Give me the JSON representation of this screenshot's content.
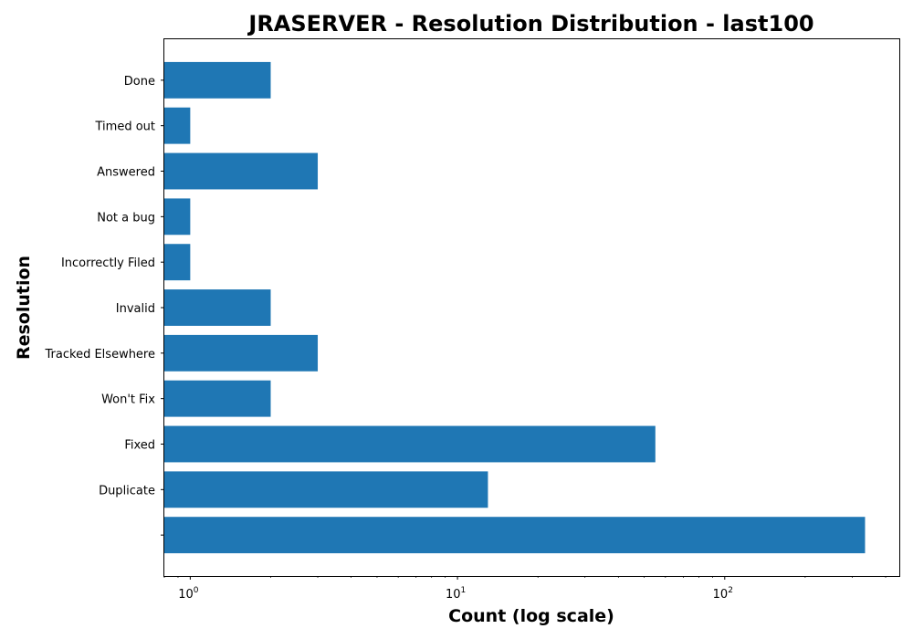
{
  "chart_data": {
    "type": "bar",
    "orientation": "horizontal",
    "title": "JRASERVER - Resolution Distribution - last100",
    "xlabel": "Count (log scale)",
    "ylabel": "Resolution",
    "x_scale": "log",
    "xlim": [
      0.8,
      450
    ],
    "x_ticks": [
      {
        "base": "10",
        "exp": "0"
      },
      {
        "base": "10",
        "exp": "1"
      },
      {
        "base": "10",
        "exp": "2"
      }
    ],
    "categories": [
      "",
      "Duplicate",
      "Fixed",
      "Won't Fix",
      "Tracked Elsewhere",
      "Invalid",
      "Incorrectly Filed",
      "Not a bug",
      "Answered",
      "Timed out",
      "Done"
    ],
    "values": [
      335,
      13,
      55,
      2,
      3,
      2,
      1,
      1,
      3,
      1,
      2
    ],
    "bar_color": "#1f77b4",
    "grid": false,
    "legend": "none"
  }
}
